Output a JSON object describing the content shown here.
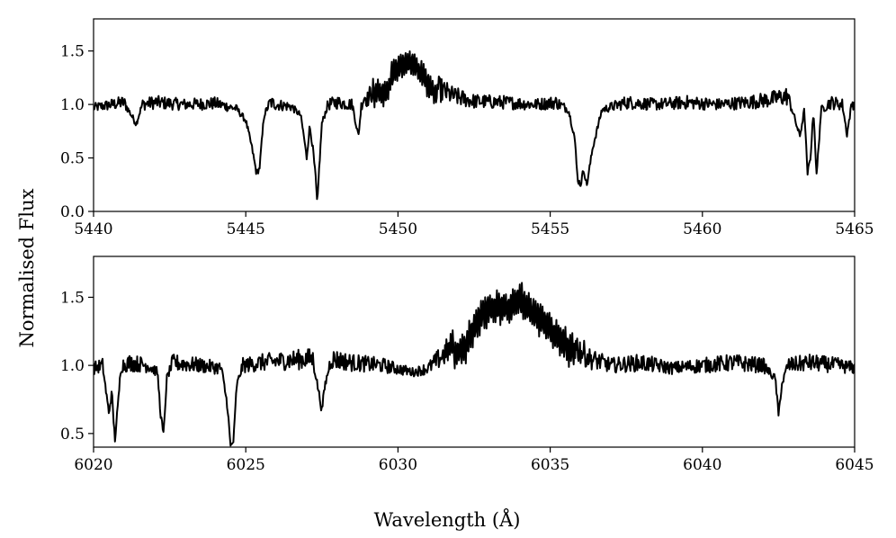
{
  "chart_data": [
    {
      "type": "line",
      "title": "",
      "xlabel": "",
      "ylabel": "",
      "xlim": [
        5440,
        5465
      ],
      "ylim": [
        0.0,
        1.8
      ],
      "xticks": [
        "5440",
        "5445",
        "5450",
        "5455",
        "5460",
        "5465"
      ],
      "yticks": [
        "0.0",
        "0.5",
        "1.0",
        "1.5"
      ],
      "xtick_values": [
        5440,
        5445,
        5450,
        5455,
        5460,
        5465
      ],
      "ytick_values": [
        0.0,
        0.5,
        1.0,
        1.5
      ],
      "grid": false,
      "series": [
        {
          "x": [
            5440.0,
            5441.0,
            5441.4,
            5441.6,
            5442.0,
            5443.0,
            5444.0,
            5444.7,
            5445.0,
            5445.2,
            5445.35,
            5445.45,
            5445.6,
            5445.8,
            5446.0,
            5446.5,
            5446.8,
            5446.9,
            5447.0,
            5447.1,
            5447.2,
            5447.3,
            5447.35,
            5447.4,
            5447.5,
            5447.7,
            5448.0,
            5448.5,
            5448.7,
            5448.8,
            5448.9,
            5449.0,
            5449.3,
            5449.6,
            5449.8,
            5450.0,
            5450.2,
            5450.4,
            5450.6,
            5450.8,
            5451.0,
            5451.3,
            5451.8,
            5452.5,
            5453.5,
            5454.5,
            5455.2,
            5455.6,
            5455.8,
            5455.9,
            5456.0,
            5456.1,
            5456.2,
            5456.4,
            5456.7,
            5457.5,
            5458.5,
            5459.5,
            5460.5,
            5461.5,
            5462.3,
            5462.8,
            5463.0,
            5463.2,
            5463.35,
            5463.45,
            5463.55,
            5463.65,
            5463.75,
            5463.9,
            5464.2,
            5464.6,
            5464.75,
            5464.9,
            5465.0
          ],
          "y": [
            0.97,
            1.02,
            0.82,
            1.0,
            1.02,
            1.0,
            1.01,
            0.96,
            0.85,
            0.6,
            0.36,
            0.4,
            0.9,
            1.02,
            1.0,
            0.98,
            0.9,
            0.72,
            0.5,
            0.8,
            0.6,
            0.3,
            0.05,
            0.35,
            0.82,
            1.0,
            1.02,
            1.0,
            0.7,
            1.0,
            1.08,
            1.05,
            1.2,
            1.15,
            1.35,
            1.4,
            1.45,
            1.47,
            1.42,
            1.35,
            1.25,
            1.15,
            1.08,
            1.03,
            1.02,
            1.0,
            1.02,
            0.95,
            0.7,
            0.3,
            0.25,
            0.4,
            0.24,
            0.6,
            0.95,
            1.02,
            1.0,
            1.02,
            1.0,
            1.02,
            1.05,
            1.08,
            0.9,
            0.7,
            0.95,
            0.35,
            0.5,
            0.95,
            0.33,
            0.95,
            1.02,
            1.0,
            0.72,
            1.0,
            1.02
          ]
        }
      ]
    },
    {
      "type": "line",
      "title": "",
      "xlabel": "Wavelength (Å)",
      "ylabel": "Normalised Flux",
      "xlim": [
        6020,
        6045
      ],
      "ylim": [
        0.4,
        1.8
      ],
      "xticks": [
        "6020",
        "6025",
        "6030",
        "6035",
        "6040",
        "6045"
      ],
      "yticks": [
        "0.5",
        "1.0",
        "1.5"
      ],
      "xtick_values": [
        6020,
        6025,
        6030,
        6035,
        6040,
        6045
      ],
      "ytick_values": [
        0.5,
        1.0,
        1.5
      ],
      "grid": false,
      "series": [
        {
          "x": [
            6020.0,
            6020.3,
            6020.5,
            6020.6,
            6020.7,
            6020.8,
            6020.9,
            6021.2,
            6021.8,
            6022.1,
            6022.2,
            6022.3,
            6022.4,
            6022.6,
            6023.5,
            6024.2,
            6024.4,
            6024.5,
            6024.6,
            6024.7,
            6024.9,
            6025.5,
            6026.5,
            6027.2,
            6027.4,
            6027.5,
            6027.6,
            6027.8,
            6028.5,
            6029.5,
            6030.5,
            6031.0,
            6031.6,
            6031.8,
            6032.2,
            6032.5,
            6032.8,
            6033.2,
            6033.6,
            6034.0,
            6034.2,
            6034.6,
            6035.0,
            6035.4,
            6035.8,
            6036.3,
            6037.0,
            6038.0,
            6039.0,
            6040.0,
            6041.0,
            6042.0,
            6042.4,
            6042.5,
            6042.6,
            6042.8,
            6043.5,
            6044.5,
            6045.0
          ],
          "y": [
            0.98,
            1.0,
            0.65,
            0.8,
            0.45,
            0.7,
            1.0,
            1.02,
            1.0,
            0.95,
            0.65,
            0.48,
            0.9,
            1.02,
            1.0,
            0.98,
            0.7,
            0.4,
            0.45,
            0.85,
            1.0,
            1.02,
            1.04,
            1.05,
            0.8,
            0.67,
            0.85,
            1.05,
            1.02,
            1.0,
            0.95,
            0.98,
            1.1,
            1.15,
            1.2,
            1.35,
            1.45,
            1.5,
            1.48,
            1.57,
            1.5,
            1.42,
            1.35,
            1.25,
            1.15,
            1.05,
            1.0,
            1.02,
            0.98,
            1.0,
            1.02,
            1.0,
            0.9,
            0.63,
            0.85,
            1.0,
            1.02,
            1.0,
            0.98
          ]
        }
      ]
    }
  ]
}
